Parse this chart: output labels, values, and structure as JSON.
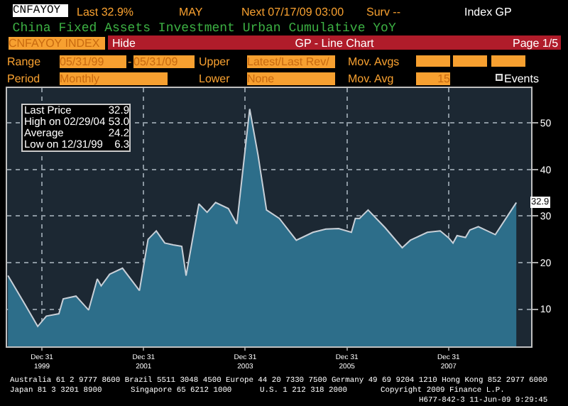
{
  "chart_data": {
    "type": "area",
    "title": "China Fixed Assets Investment Urban Cumulative YoY",
    "x": [
      "1999-05",
      "1999-09",
      "1999-12",
      "2000-02",
      "2000-05",
      "2000-06",
      "2000-09",
      "2000-12",
      "2001-02",
      "2001-03",
      "2001-05",
      "2001-08",
      "2001-12",
      "2002-02",
      "2002-04",
      "2002-06",
      "2002-08",
      "2002-10",
      "2002-11",
      "2003-02",
      "2003-04",
      "2003-06",
      "2003-09",
      "2003-11",
      "2004-02",
      "2004-04",
      "2004-06",
      "2004-09",
      "2005-01",
      "2005-05",
      "2005-08",
      "2005-11",
      "2006-02",
      "2006-03",
      "2006-04",
      "2006-06",
      "2006-10",
      "2007-02",
      "2007-04",
      "2007-08",
      "2007-11",
      "2008-01",
      "2008-02",
      "2008-03",
      "2008-05",
      "2008-06",
      "2008-08",
      "2008-12",
      "2009-05"
    ],
    "series": [
      {
        "color": "#2d6e8a",
        "values": [
          17.2,
          11.0,
          6.3,
          8.5,
          9.0,
          12.2,
          12.8,
          9.8,
          16.5,
          15.0,
          17.5,
          18.8,
          14.0,
          25.0,
          26.8,
          24.2,
          23.8,
          23.5,
          17.2,
          32.6,
          30.8,
          32.9,
          31.6,
          28.3,
          53.0,
          43.1,
          31.3,
          29.5,
          24.8,
          26.5,
          27.2,
          27.3,
          26.5,
          29.5,
          29.5,
          31.3,
          27.5,
          23.2,
          24.8,
          26.5,
          26.8,
          25.3,
          24.2,
          25.8,
          25.4,
          27.0,
          27.7,
          26.0,
          32.9
        ]
      }
    ],
    "xlim": [
      "1999-04-25",
      "2009-08-15"
    ],
    "ylim": [
      2,
      57.5
    ],
    "xticks": [
      {
        "value": "1999-12-31",
        "label": "Dec 31\n1999"
      },
      {
        "value": "2001-12-31",
        "label": "Dec 31\n2001"
      },
      {
        "value": "2003-12-31",
        "label": "Dec 31\n2003"
      },
      {
        "value": "2005-12-31",
        "label": "Dec 31\n2005"
      },
      {
        "value": "2007-12-31",
        "label": "Dec 31\n2007"
      }
    ],
    "yticks": [
      10,
      20,
      30,
      40,
      50
    ],
    "grid": true,
    "annotations": [
      "CNFAYOY",
      "Last 32.9%",
      "MAY",
      "Next 07/17/09 03:00",
      "Surv --",
      "Index GP",
      "CNFAYOY INDEX",
      "Hide",
      "GP - Line Chart",
      "Page 1/5",
      "Range",
      "05/31/99",
      "-",
      "05/31/09",
      "Upper",
      "Latest/Last Rev/",
      "Mov. Avgs",
      "Period",
      "Monthly",
      "Lower",
      "None",
      "Mov. Avg",
      "15",
      "Events",
      "Last Price",
      "32.9",
      "High on 02/29/04",
      "53.0",
      "Average",
      "24.2",
      "Low on 12/31/99",
      "6.3",
      "Australia 61 2 9777 8600 Brazil 5511 3048 4500 Europe 44 20 7330 7500 Germany 49 69 9204 1210 Hong Kong 852 2977 6000",
      "Japan 81 3 3201 8900",
      "Singapore 65 6212 1000",
      "U.S. 1 212 318 2000",
      "Copyright 2009 Finance L.P.",
      "H677-842-3 11-Jun-09 9:29:45",
      {
        "text": "32.9",
        "x": "2009-05",
        "y": 32.9
      }
    ]
  }
}
